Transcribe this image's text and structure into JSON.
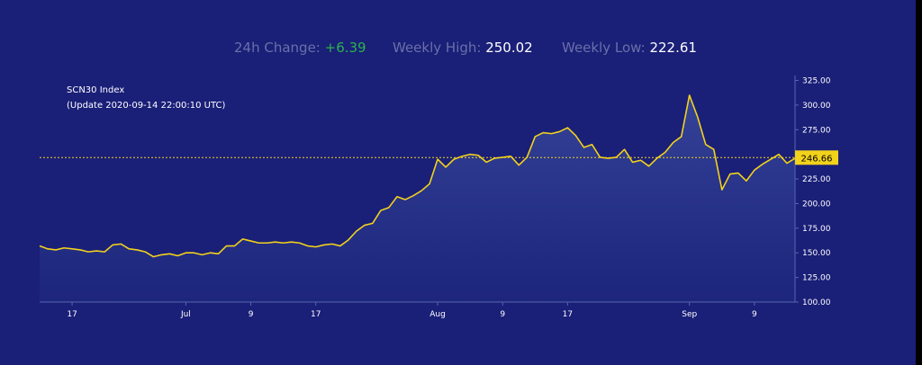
{
  "stats": {
    "change_label": "24h Change: ",
    "change_value": "+6.39",
    "high_label": "Weekly High: ",
    "high_value": "250.02",
    "low_label": "Weekly Low: ",
    "low_value": "222.61"
  },
  "colors": {
    "background": "#1a1f78",
    "line": "#f2d21b",
    "change_positive": "#2bb24c",
    "muted_label": "#6a70a8"
  },
  "chart_data": {
    "type": "area",
    "title": "SCN30 Index",
    "subtitle": "(Update 2020-09-14 22:00:10 UTC)",
    "xlabel": "",
    "ylabel": "",
    "ylim": [
      100,
      330
    ],
    "y_ticks": [
      "100.00",
      "125.00",
      "150.00",
      "175.00",
      "200.00",
      "225.00",
      "250.00",
      "275.00",
      "300.00",
      "325.00"
    ],
    "x_ticks": [
      {
        "label": "17",
        "index": 4
      },
      {
        "label": "Jul",
        "index": 18
      },
      {
        "label": "9",
        "index": 26
      },
      {
        "label": "17",
        "index": 34
      },
      {
        "label": "Aug",
        "index": 49
      },
      {
        "label": "9",
        "index": 57
      },
      {
        "label": "17",
        "index": 65
      },
      {
        "label": "Sep",
        "index": 80
      },
      {
        "label": "9",
        "index": 88
      }
    ],
    "current_value": "246.66",
    "current_value_num": 246.66,
    "values": [
      157,
      154,
      153,
      155,
      154,
      153,
      151,
      152,
      151,
      158,
      159,
      154,
      153,
      151,
      146,
      148,
      149,
      147,
      150,
      150,
      148,
      150,
      149,
      157,
      157,
      164,
      162,
      160,
      160,
      161,
      160,
      161,
      160,
      157,
      156,
      158,
      159,
      157,
      163,
      172,
      178,
      180,
      193,
      196,
      207,
      204,
      208,
      213,
      220,
      245,
      237,
      245,
      248,
      250,
      249,
      242,
      246,
      247,
      248,
      239,
      247,
      268,
      272,
      271,
      273,
      277,
      269,
      257,
      260,
      247,
      246,
      247,
      255,
      242,
      244,
      238,
      246,
      252,
      262,
      268,
      310,
      288,
      260,
      255,
      214,
      230,
      231,
      223,
      234,
      240,
      245,
      250,
      241,
      246
    ],
    "grid": false,
    "legend": "none"
  }
}
